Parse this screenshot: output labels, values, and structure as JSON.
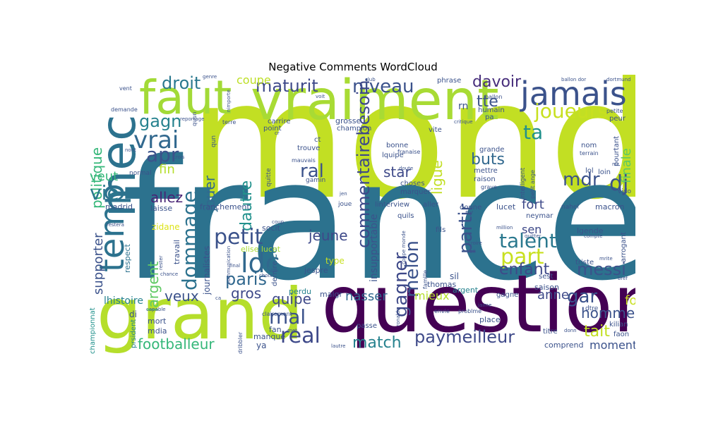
{
  "title": "Negative Comments WordCloud",
  "words": [
    {
      "id": "monde",
      "text": "monde",
      "color": "#c2df23"
    },
    {
      "id": "france",
      "text": "france",
      "color": "#2c728e"
    },
    {
      "id": "question",
      "text": "question",
      "color": "#440154"
    },
    {
      "id": "grand",
      "text": "grand",
      "color": "#b5de2b"
    },
    {
      "id": "vraiment",
      "text": "vraiment",
      "color": "#a8db34"
    },
    {
      "id": "faut",
      "text": "faut",
      "color": "#a2da37"
    },
    {
      "id": "mec",
      "text": "mec",
      "color": "#2c728e"
    },
    {
      "id": "temp",
      "text": "temp",
      "color": "#2c728e"
    },
    {
      "id": "jamais",
      "text": "jamais",
      "color": "#3b528b"
    },
    {
      "id": "joueurs",
      "text": "joueurs",
      "color": "#c8e020"
    },
    {
      "id": "maturit",
      "text": "maturit",
      "color": "#3e4989"
    },
    {
      "id": "niveau",
      "text": "niveau",
      "color": "#3b528b"
    },
    {
      "id": "davoir",
      "text": "davoir",
      "color": "#472d7b"
    },
    {
      "id": "droit",
      "text": "droit",
      "color": "#2a788e"
    },
    {
      "id": "vrai",
      "text": "vrai",
      "color": "#31688e"
    },
    {
      "id": "gagn",
      "text": "gagn",
      "color": "#26828e"
    },
    {
      "id": "apr",
      "text": "apr",
      "color": "#3b528b"
    },
    {
      "id": "politique",
      "text": "politique",
      "color": "#35b779"
    },
    {
      "id": "veut",
      "text": "veut",
      "color": "#35b779"
    },
    {
      "id": "vie",
      "text": "vie",
      "color": "#2a788e"
    },
    {
      "id": "allez",
      "text": "allez",
      "color": "#482475"
    },
    {
      "id": "fin",
      "text": "fin",
      "color": "#b5de2b"
    },
    {
      "id": "dommage",
      "text": "dommage",
      "color": "#2c728e"
    },
    {
      "id": "jouer",
      "text": "jouer",
      "color": "#31688e"
    },
    {
      "id": "dautre",
      "text": "dautre",
      "color": "#21918c"
    },
    {
      "id": "commentairebesoin",
      "text": "commentairebesoin",
      "color": "#3e4989"
    },
    {
      "id": "ral",
      "text": "ral",
      "color": "#3b528b"
    },
    {
      "id": "star",
      "text": "star",
      "color": "#3e4989"
    },
    {
      "id": "buts",
      "text": "buts",
      "color": "#31688e"
    },
    {
      "id": "mdr",
      "text": "mdr",
      "color": "#3b528b"
    },
    {
      "id": "dj",
      "text": "dj",
      "color": "#3b528b"
    },
    {
      "id": "ligue",
      "text": "ligue",
      "color": "#c2df23"
    },
    {
      "id": "ta",
      "text": "ta",
      "color": "#21918c"
    },
    {
      "id": "tte",
      "text": "tte",
      "color": "#3b528b"
    },
    {
      "id": "rn",
      "text": "rn",
      "color": "#3b528b"
    },
    {
      "id": "finale",
      "text": "finale",
      "color": "#5ec962"
    },
    {
      "id": "petit",
      "text": "petit",
      "color": "#3b528b"
    },
    {
      "id": "ldc",
      "text": "ldc",
      "color": "#31688e"
    },
    {
      "id": "paris",
      "text": "paris",
      "color": "#31688e"
    },
    {
      "id": "mal",
      "text": "mal",
      "color": "#3b528b"
    },
    {
      "id": "real",
      "text": "real",
      "color": "#3e4989"
    },
    {
      "id": "match",
      "text": "match",
      "color": "#26828e"
    },
    {
      "id": "footballeur",
      "text": "footballeur",
      "color": "#35b779"
    },
    {
      "id": "largent",
      "text": "largent",
      "color": "#5ec962"
    },
    {
      "id": "gros",
      "text": "gros",
      "color": "#3e4989"
    },
    {
      "id": "veux",
      "text": "veux",
      "color": "#3b528b"
    },
    {
      "id": "jeune",
      "text": "jeune",
      "color": "#3e4989"
    },
    {
      "id": "quipe",
      "text": "quipe",
      "color": "#3e4989"
    },
    {
      "id": "gagner",
      "text": "gagner",
      "color": "#3e4989"
    },
    {
      "id": "melon",
      "text": "melon",
      "color": "#3b528b"
    },
    {
      "id": "partir",
      "text": "partir",
      "color": "#3b528b"
    },
    {
      "id": "talent",
      "text": "talent",
      "color": "#2a788e"
    },
    {
      "id": "part",
      "text": "part",
      "color": "#c8e020"
    },
    {
      "id": "messi",
      "text": "messi",
      "color": "#3b528b"
    },
    {
      "id": "enfant",
      "text": "enfant",
      "color": "#3e4989"
    },
    {
      "id": "fort",
      "text": "fort",
      "color": "#3e4989"
    },
    {
      "id": "sen",
      "text": "sen",
      "color": "#3e4989"
    },
    {
      "id": "gar",
      "text": "gar",
      "color": "#3b528b"
    },
    {
      "id": "anne",
      "text": "anne",
      "color": "#3e4989"
    },
    {
      "id": "homme",
      "text": "homme",
      "color": "#3b528b"
    },
    {
      "id": "fou",
      "text": "fou",
      "color": "#c8e020"
    },
    {
      "id": "tait",
      "text": "tait",
      "color": "#c2df23"
    },
    {
      "id": "moment",
      "text": "moment",
      "color": "#3b528b"
    },
    {
      "id": "paymeilleur",
      "text": "paymeilleur",
      "color": "#3e4989"
    },
    {
      "id": "mieux",
      "text": "mieux",
      "color": "#b5de2b"
    },
    {
      "id": "nasser",
      "text": "nasser",
      "color": "#31688e"
    },
    {
      "id": "supporter",
      "text": "supporter",
      "color": "#3b528b"
    },
    {
      "id": "coupe",
      "text": "coupe",
      "color": "#bddf26"
    },
    {
      "id": "face",
      "text": "face",
      "color": "#2c728e"
    },
    {
      "id": "insupportable",
      "text": "insupportable",
      "color": "#3b528b"
    },
    {
      "id": "lhistoire",
      "text": "lhistoire",
      "color": "#26828e"
    },
    {
      "id": "journalistes",
      "text": "journalistes",
      "color": "#3b528b"
    },
    {
      "id": "franchement",
      "text": "franchement",
      "color": "#3b528b"
    },
    {
      "id": "socit",
      "text": "socit",
      "color": "#3b528b"
    },
    {
      "id": "madrid",
      "text": "madrid",
      "color": "#3b528b"
    },
    {
      "id": "laisse",
      "text": "laisse",
      "color": "#3b528b"
    },
    {
      "id": "zidane",
      "text": "zidane",
      "color": "#dde318"
    },
    {
      "id": "travail",
      "text": "travail",
      "color": "#3b528b"
    },
    {
      "id": "respect",
      "text": "respect",
      "color": "#2c728e"
    },
    {
      "id": "elise_lucet",
      "text": "elise lucet",
      "color": "#a8db34"
    },
    {
      "id": "jespre",
      "text": "jespre",
      "color": "#3b528b"
    },
    {
      "id": "type",
      "text": "type",
      "color": "#c8e020"
    },
    {
      "id": "perdu",
      "text": "perdu",
      "color": "#26828e"
    },
    {
      "id": "dernire",
      "text": "dernire",
      "color": "#3b528b"
    },
    {
      "id": "malgr",
      "text": "malgr",
      "color": "#3b528b"
    },
    {
      "id": "mort",
      "text": "mort",
      "color": "#3b528b"
    },
    {
      "id": "mdia",
      "text": "mdia",
      "color": "#3b528b"
    },
    {
      "id": "di",
      "text": "di",
      "color": "#3b528b"
    },
    {
      "id": "championnat",
      "text": "championnat",
      "color": "#21918c"
    },
    {
      "id": "prsident",
      "text": "prsident",
      "color": "#26828e"
    },
    {
      "id": "ya",
      "text": "ya",
      "color": "#3b528b"
    },
    {
      "id": "manque",
      "text": "manque",
      "color": "#3b528b"
    },
    {
      "id": "fan",
      "text": "fan",
      "color": "#3b528b"
    },
    {
      "id": "passe",
      "text": "passe",
      "color": "#3b528b"
    },
    {
      "id": "place",
      "text": "place",
      "color": "#3b528b"
    },
    {
      "id": "thomas",
      "text": "thomas",
      "color": "#3b528b"
    },
    {
      "id": "sil",
      "text": "sil",
      "color": "#3b528b"
    },
    {
      "id": "argent",
      "text": "argent",
      "color": "#26828e"
    },
    {
      "id": "gagne",
      "text": "gagne",
      "color": "#3b528b"
    },
    {
      "id": "saison",
      "text": "saison",
      "color": "#3b528b"
    },
    {
      "id": "sest",
      "text": "sest",
      "color": "#3b528b"
    },
    {
      "id": "triste",
      "text": "triste",
      "color": "#3b528b"
    },
    {
      "id": "comprend",
      "text": "comprend",
      "color": "#3b528b"
    },
    {
      "id": "faon",
      "text": "faon",
      "color": "#3b528b"
    },
    {
      "id": "kilian",
      "text": "kilian",
      "color": "#3b528b"
    },
    {
      "id": "titre",
      "text": "titre",
      "color": "#3b528b"
    },
    {
      "id": "dtre",
      "text": "dtre",
      "color": "#3b528b"
    },
    {
      "id": "lgende",
      "text": "lgende",
      "color": "#3b528b"
    },
    {
      "id": "arrogant",
      "text": "arrogant",
      "color": "#3b528b"
    },
    {
      "id": "neymar",
      "text": "neymar",
      "color": "#3b528b"
    },
    {
      "id": "macron",
      "text": "macron",
      "color": "#3b528b"
    },
    {
      "id": "vido",
      "text": "vido",
      "color": "#3b528b"
    },
    {
      "id": "nahel",
      "text": "nahel",
      "color": "#3b528b"
    },
    {
      "id": "lucet",
      "text": "lucet",
      "color": "#3b528b"
    },
    {
      "id": "donne",
      "text": "donne",
      "color": "#3b528b"
    },
    {
      "id": "fils",
      "text": "fils",
      "color": "#3b528b"
    },
    {
      "id": "aller",
      "text": "aller",
      "color": "#3b528b"
    },
    {
      "id": "linterview",
      "text": "linterview",
      "color": "#3b528b"
    },
    {
      "id": "quils",
      "text": "quils",
      "color": "#3b528b"
    },
    {
      "id": "choses",
      "text": "choses",
      "color": "#3b528b"
    },
    {
      "id": "marquer",
      "text": "marquer",
      "color": "#3b528b"
    },
    {
      "id": "gamin",
      "text": "gamin",
      "color": "#3b528b"
    },
    {
      "id": "quitte",
      "text": "quitte",
      "color": "#3b528b"
    },
    {
      "id": "lquipe",
      "text": "lquipe",
      "color": "#3b528b"
    },
    {
      "id": "trouve",
      "text": "trouve",
      "color": "#3b528b"
    },
    {
      "id": "ct",
      "text": "ct",
      "color": "#3b528b"
    },
    {
      "id": "bonne",
      "text": "bonne",
      "color": "#3b528b"
    },
    {
      "id": "franaise",
      "text": "franaise",
      "color": "#3b528b"
    },
    {
      "id": "mauvais",
      "text": "mauvais",
      "color": "#3b528b"
    },
    {
      "id": "carrire",
      "text": "carrire",
      "color": "#3b528b"
    },
    {
      "id": "point",
      "text": "point",
      "color": "#3b528b"
    },
    {
      "id": "terre",
      "text": "terre",
      "color": "#3b528b"
    },
    {
      "id": "qun",
      "text": "qun",
      "color": "#3b528b"
    },
    {
      "id": "grosse",
      "text": "grosse",
      "color": "#3b528b"
    },
    {
      "id": "champion",
      "text": "champion",
      "color": "#3b528b"
    },
    {
      "id": "vite",
      "text": "vite",
      "color": "#3b528b"
    },
    {
      "id": "phrase",
      "text": "phrase",
      "color": "#3b528b"
    },
    {
      "id": "humain",
      "text": "humain",
      "color": "#3b528b"
    },
    {
      "id": "pa",
      "text": "pa",
      "color": "#3b528b"
    },
    {
      "id": "grande",
      "text": "grande",
      "color": "#3b528b"
    },
    {
      "id": "mettre",
      "text": "mettre",
      "color": "#3b528b"
    },
    {
      "id": "raison",
      "text": "raison",
      "color": "#3b528b"
    },
    {
      "id": "grave",
      "text": "grave",
      "color": "#3b528b"
    },
    {
      "id": "intelligent",
      "text": "intelligent",
      "color": "#3b528b"
    },
    {
      "id": "petit_ange",
      "text": "petit ange",
      "color": "#3b528b"
    },
    {
      "id": "nom",
      "text": "nom",
      "color": "#3b528b"
    },
    {
      "id": "terrain",
      "text": "terrain",
      "color": "#3b528b"
    },
    {
      "id": "pourtant",
      "text": "pourtant",
      "color": "#3b528b"
    },
    {
      "id": "peur",
      "text": "peur",
      "color": "#3b528b"
    },
    {
      "id": "petite",
      "text": "petite",
      "color": "#3b528b"
    },
    {
      "id": "lol",
      "text": "lol",
      "color": "#3b528b"
    },
    {
      "id": "loin",
      "text": "loin",
      "color": "#3b528b"
    },
    {
      "id": "ballon_dor",
      "text": "ballon dor",
      "color": "#3b528b"
    },
    {
      "id": "dortmund",
      "text": "dortmund",
      "color": "#3b528b"
    },
    {
      "id": "ballon",
      "text": "ballon",
      "color": "#3b528b"
    },
    {
      "id": "critique",
      "text": "critique",
      "color": "#3b528b"
    },
    {
      "id": "normal",
      "text": "normal",
      "color": "#3b528b"
    },
    {
      "id": "vent",
      "text": "vent",
      "color": "#3b528b"
    },
    {
      "id": "demande",
      "text": "demande",
      "color": "#3b528b"
    },
    {
      "id": "genre",
      "text": "genre",
      "color": "#3b528b"
    },
    {
      "id": "reportage",
      "text": "reportage",
      "color": "#3b528b"
    },
    {
      "id": "nimporte",
      "text": "nimporte",
      "color": "#3b528b"
    },
    {
      "id": "club",
      "text": "club",
      "color": "#3b528b"
    },
    {
      "id": "voit",
      "text": "voit",
      "color": "#3b528b"
    },
    {
      "id": "crois",
      "text": "crois",
      "color": "#3b528b"
    },
    {
      "id": "nont",
      "text": "nont",
      "color": "#3b528b"
    },
    {
      "id": "restera",
      "text": "restera",
      "color": "#3b528b"
    },
    {
      "id": "jen",
      "text": "jen",
      "color": "#3b528b"
    },
    {
      "id": "joue",
      "text": "joue",
      "color": "#3b528b"
    },
    {
      "id": "ny",
      "text": "ny",
      "color": "#3b528b"
    },
    {
      "id": "million",
      "text": "million",
      "color": "#3b528b"
    },
    {
      "id": "quitter",
      "text": "quitter",
      "color": "#3b528b"
    },
    {
      "id": "compte",
      "text": "compte",
      "color": "#3b528b"
    },
    {
      "id": "mrite",
      "text": "mrite",
      "color": "#3b528b"
    },
    {
      "id": "bref",
      "text": "bref",
      "color": "#3b528b"
    },
    {
      "id": "voil",
      "text": "voil",
      "color": "#3b528b"
    },
    {
      "id": "croire",
      "text": "croire",
      "color": "#3b528b"
    },
    {
      "id": "coupe_monde",
      "text": "coupe monde",
      "color": "#3b528b"
    },
    {
      "id": "famille",
      "text": "famille",
      "color": "#3b528b"
    },
    {
      "id": "final",
      "text": "final",
      "color": "#3b528b"
    },
    {
      "id": "coup",
      "text": "coup",
      "color": "#3b528b"
    },
    {
      "id": "choix",
      "text": "choix",
      "color": "#3b528b"
    },
    {
      "id": "communication",
      "text": "communication",
      "color": "#3b528b"
    },
    {
      "id": "chance",
      "text": "chance",
      "color": "#3b528b"
    },
    {
      "id": "clairement",
      "text": "clairement",
      "color": "#3b528b"
    },
    {
      "id": "capable",
      "text": "capable",
      "color": "#3b528b"
    },
    {
      "id": "dribbler",
      "text": "dribbler",
      "color": "#3b528b"
    },
    {
      "id": "ronaldo",
      "text": "ronaldo",
      "color": "#3b528b"
    },
    {
      "id": "envie",
      "text": "envie",
      "color": "#3b528b"
    },
    {
      "id": "problme",
      "text": "problme",
      "color": "#3b528b"
    },
    {
      "id": "jaime",
      "text": "jaime",
      "color": "#3b528b"
    },
    {
      "id": "ca",
      "text": "ca",
      "color": "#3b528b"
    },
    {
      "id": "met",
      "text": "met",
      "color": "#3b528b"
    },
    {
      "id": "lautre",
      "text": "lautre",
      "color": "#3b528b"
    },
    {
      "id": "cr",
      "text": "cr",
      "color": "#3b528b"
    },
    {
      "id": "donn",
      "text": "donn",
      "color": "#3b528b"
    },
    {
      "id": "mr",
      "text": "mr",
      "color": "#3b528b"
    },
    {
      "id": "doute",
      "text": "doute",
      "color": "#3b528b"
    },
    {
      "id": "quun",
      "text": "quun",
      "color": "#3b528b"
    },
    {
      "id": "rester",
      "text": "rester",
      "color": "#3b528b"
    }
  ]
}
